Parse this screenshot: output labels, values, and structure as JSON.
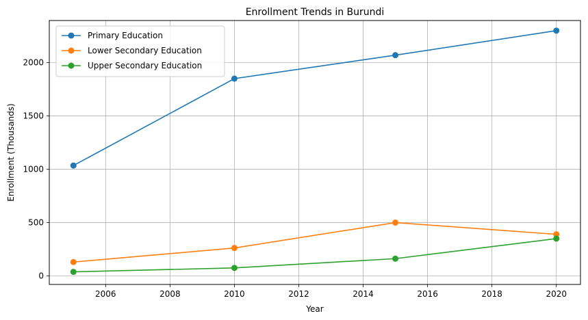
{
  "chart_data": {
    "type": "line",
    "title": "Enrollment Trends in Burundi",
    "xlabel": "Year",
    "ylabel": "Enrollment (Thousands)",
    "xlim": [
      2004.25,
      2020.75
    ],
    "ylim": [
      -80,
      2395
    ],
    "xticks": [
      2006,
      2008,
      2010,
      2012,
      2014,
      2016,
      2018,
      2020
    ],
    "yticks": [
      0,
      500,
      1000,
      1500,
      2000
    ],
    "grid": true,
    "legend_position": "upper-left",
    "x": [
      2005,
      2010,
      2015,
      2020
    ],
    "series": [
      {
        "name": "Primary Education",
        "color": "#1f77b4",
        "values": [
          1035,
          1850,
          2070,
          2300
        ]
      },
      {
        "name": "Lower Secondary Education",
        "color": "#ff7f0e",
        "values": [
          130,
          262,
          500,
          390
        ]
      },
      {
        "name": "Upper Secondary Education",
        "color": "#2ca02c",
        "values": [
          38,
          75,
          162,
          350
        ]
      }
    ]
  }
}
